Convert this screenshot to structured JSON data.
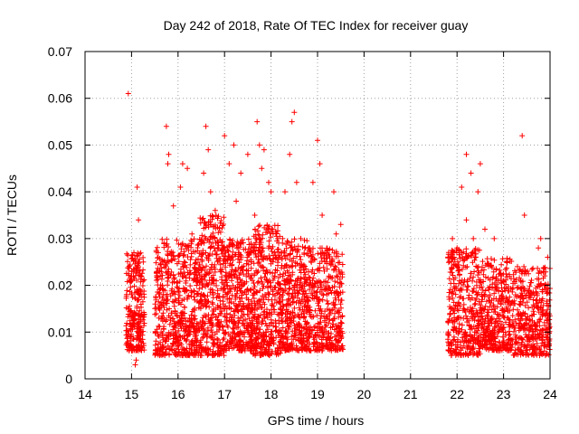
{
  "chart_data": {
    "type": "scatter",
    "title": "Day 242 of 2018, Rate Of TEC Index for receiver guay",
    "xlabel": "GPS time / hours",
    "ylabel": "ROTI / TECUs",
    "xlim": [
      14,
      24
    ],
    "ylim": [
      0,
      0.07
    ],
    "xticks": [
      "14",
      "15",
      "16",
      "17",
      "18",
      "19",
      "20",
      "21",
      "22",
      "23",
      "24"
    ],
    "yticks": [
      "0",
      "0.01",
      "0.02",
      "0.03",
      "0.04",
      "0.05",
      "0.06",
      "0.07"
    ],
    "grid": true,
    "marker": "+",
    "marker_color": "#ff0000",
    "series": [
      {
        "name": "ROTI",
        "points": [
          [
            14.93,
            0.061
          ],
          [
            15.12,
            0.041
          ],
          [
            15.15,
            0.034
          ],
          [
            15.05,
            0.027
          ],
          [
            15.1,
            0.004
          ],
          [
            15.08,
            0.003
          ],
          [
            15.2,
            0.022
          ],
          [
            15.0,
            0.018
          ],
          [
            15.03,
            0.012
          ],
          [
            15.75,
            0.054
          ],
          [
            15.8,
            0.048
          ],
          [
            15.78,
            0.046
          ],
          [
            16.1,
            0.046
          ],
          [
            16.2,
            0.045
          ],
          [
            16.05,
            0.041
          ],
          [
            15.9,
            0.037
          ],
          [
            16.3,
            0.031
          ],
          [
            15.6,
            0.023
          ],
          [
            15.95,
            0.01
          ],
          [
            16.25,
            0.005
          ],
          [
            16.6,
            0.054
          ],
          [
            16.65,
            0.049
          ],
          [
            16.55,
            0.044
          ],
          [
            16.7,
            0.04
          ],
          [
            16.8,
            0.036
          ],
          [
            16.9,
            0.014
          ],
          [
            17.0,
            0.052
          ],
          [
            17.2,
            0.05
          ],
          [
            17.1,
            0.046
          ],
          [
            17.35,
            0.044
          ],
          [
            17.5,
            0.048
          ],
          [
            17.25,
            0.038
          ],
          [
            17.3,
            0.027
          ],
          [
            17.15,
            0.008
          ],
          [
            17.05,
            0.015
          ],
          [
            17.7,
            0.055
          ],
          [
            17.75,
            0.05
          ],
          [
            17.85,
            0.049
          ],
          [
            17.8,
            0.045
          ],
          [
            17.95,
            0.042
          ],
          [
            17.65,
            0.035
          ],
          [
            18.0,
            0.04
          ],
          [
            17.9,
            0.009
          ],
          [
            18.5,
            0.057
          ],
          [
            18.45,
            0.055
          ],
          [
            18.4,
            0.048
          ],
          [
            18.55,
            0.042
          ],
          [
            18.3,
            0.04
          ],
          [
            18.25,
            0.03
          ],
          [
            18.6,
            0.01
          ],
          [
            19.0,
            0.051
          ],
          [
            19.05,
            0.046
          ],
          [
            18.9,
            0.042
          ],
          [
            19.35,
            0.04
          ],
          [
            19.1,
            0.035
          ],
          [
            19.4,
            0.031
          ],
          [
            19.5,
            0.033
          ],
          [
            19.2,
            0.025
          ],
          [
            19.45,
            0.011
          ],
          [
            21.9,
            0.03
          ],
          [
            22.0,
            0.028
          ],
          [
            22.1,
            0.041
          ],
          [
            22.2,
            0.048
          ],
          [
            22.3,
            0.044
          ],
          [
            22.5,
            0.046
          ],
          [
            22.45,
            0.04
          ],
          [
            22.6,
            0.032
          ],
          [
            22.2,
            0.034
          ],
          [
            22.35,
            0.03
          ],
          [
            22.8,
            0.03
          ],
          [
            23.0,
            0.021
          ],
          [
            23.3,
            0.024
          ],
          [
            23.4,
            0.052
          ],
          [
            23.45,
            0.035
          ],
          [
            23.8,
            0.03
          ],
          [
            23.75,
            0.028
          ],
          [
            23.95,
            0.026
          ],
          [
            23.9,
            0.005
          ],
          [
            22.05,
            0.01
          ],
          [
            22.7,
            0.012
          ],
          [
            23.1,
            0.013
          ],
          [
            23.6,
            0.009
          ]
        ],
        "bands": [
          {
            "x0": 14.88,
            "x1": 15.28,
            "ymin": 0.006,
            "ymax": 0.027,
            "count": 260
          },
          {
            "x0": 15.5,
            "x1": 16.45,
            "ymin": 0.005,
            "ymax": 0.03,
            "count": 560
          },
          {
            "x0": 16.45,
            "x1": 17.0,
            "ymin": 0.005,
            "ymax": 0.035,
            "count": 380
          },
          {
            "x0": 17.0,
            "x1": 17.6,
            "ymin": 0.006,
            "ymax": 0.03,
            "count": 380
          },
          {
            "x0": 17.6,
            "x1": 18.2,
            "ymin": 0.005,
            "ymax": 0.033,
            "count": 400
          },
          {
            "x0": 18.2,
            "x1": 18.8,
            "ymin": 0.006,
            "ymax": 0.03,
            "count": 380
          },
          {
            "x0": 18.8,
            "x1": 19.55,
            "ymin": 0.006,
            "ymax": 0.028,
            "count": 400
          },
          {
            "x0": 21.8,
            "x1": 22.5,
            "ymin": 0.005,
            "ymax": 0.028,
            "count": 380
          },
          {
            "x0": 22.5,
            "x1": 23.2,
            "ymin": 0.006,
            "ymax": 0.026,
            "count": 380
          },
          {
            "x0": 23.2,
            "x1": 24.0,
            "ymin": 0.005,
            "ymax": 0.024,
            "count": 400
          }
        ]
      }
    ]
  }
}
